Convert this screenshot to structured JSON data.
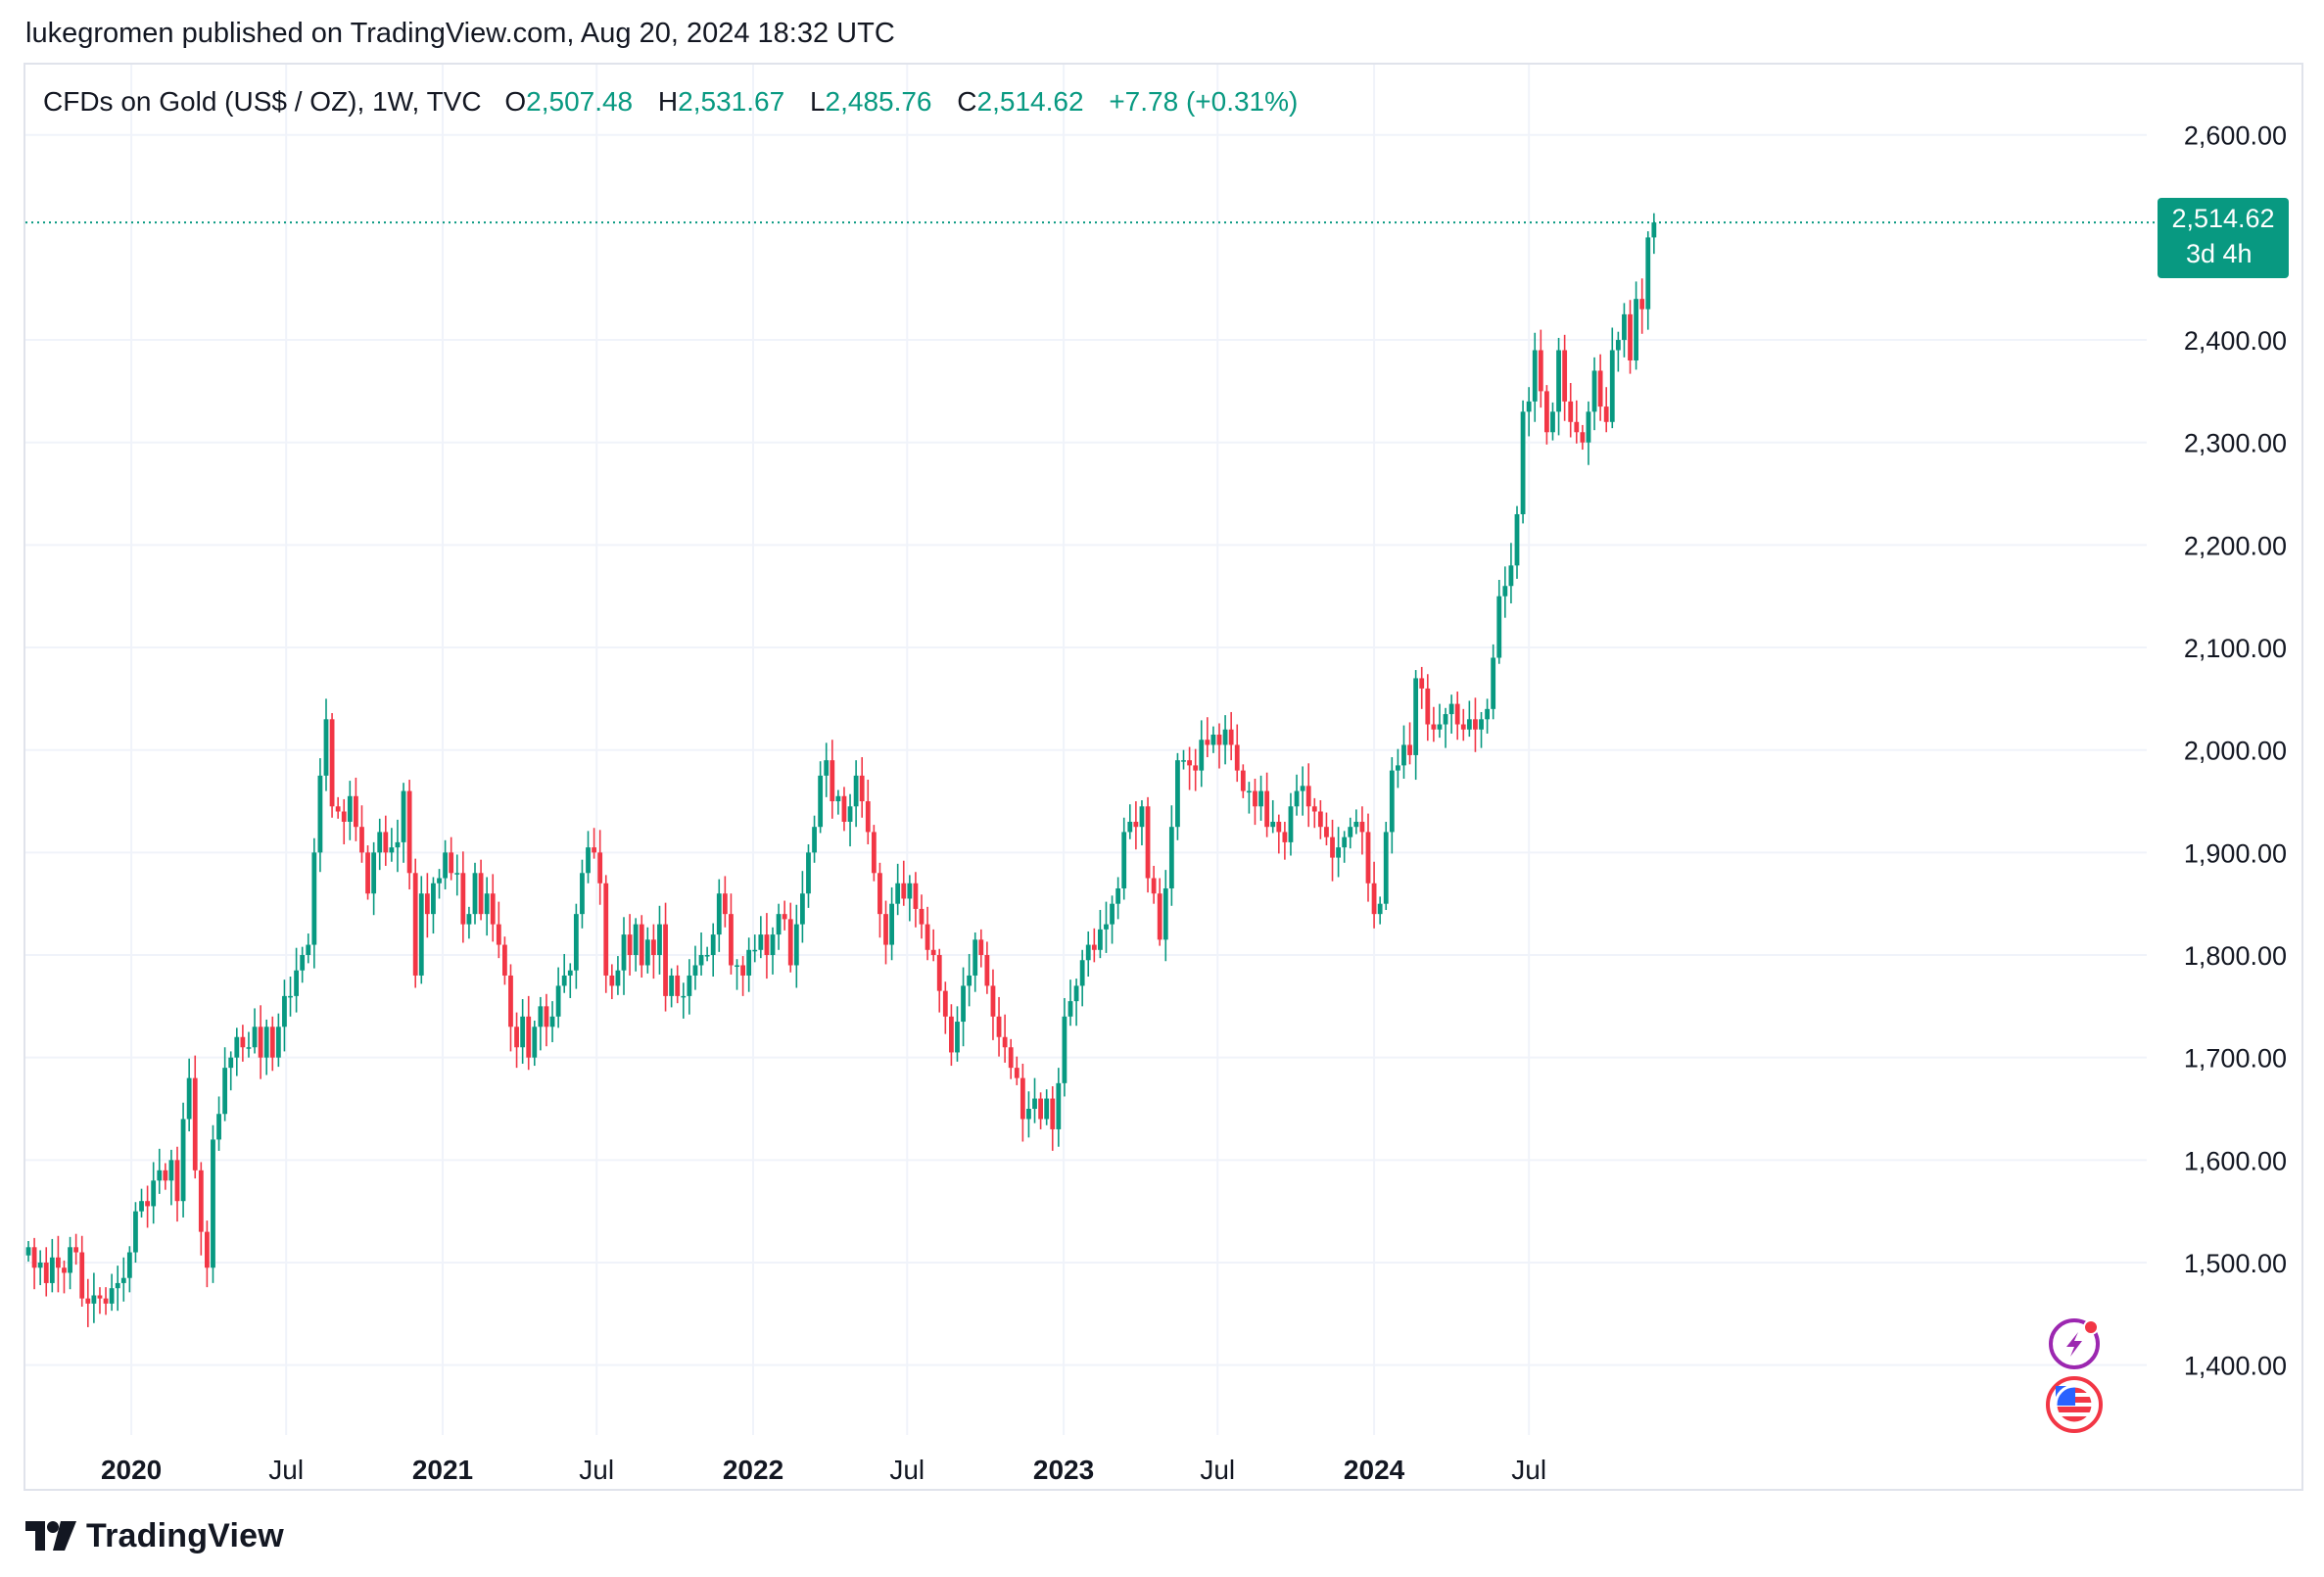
{
  "header": {
    "published": "lukegromen published on TradingView.com, Aug 20, 2024 18:32 UTC"
  },
  "legend": {
    "symbol": "CFDs on Gold (US$ / OZ), 1W, TVC",
    "o_label": "O",
    "o_value": "2,507.48",
    "h_label": "H",
    "h_value": "2,531.67",
    "l_label": "L",
    "l_value": "2,485.76",
    "c_label": "C",
    "c_value": "2,514.62",
    "change": "+7.78 (+0.31%)"
  },
  "price_tag": {
    "price": "2,514.62",
    "countdown": "3d 4h"
  },
  "footer": {
    "brand": "TradingView"
  },
  "colors": {
    "up": "#089981",
    "down": "#f23645",
    "grid": "#f0f3fa",
    "text": "#131722"
  },
  "icons": [
    "lightning-event-icon",
    "us-flag-icon"
  ],
  "chart_data": {
    "type": "candlestick",
    "symbol": "CFDs on Gold (US$ / OZ)",
    "interval": "1W",
    "y_ticks": [
      1400,
      1500,
      1600,
      1700,
      1800,
      1900,
      2000,
      2100,
      2200,
      2300,
      2400,
      2600
    ],
    "y_tick_labels": [
      "1,400.00",
      "1,500.00",
      "1,600.00",
      "1,700.00",
      "1,800.00",
      "1,900.00",
      "2,000.00",
      "2,100.00",
      "2,200.00",
      "2,300.00",
      "2,400.00",
      "2,600.00"
    ],
    "ylim": [
      1340,
      2640
    ],
    "last_price": 2514.62,
    "x_ticks": [
      {
        "label": "2020",
        "date": "2020-01-01",
        "bold": true
      },
      {
        "label": "Jul",
        "date": "2020-07-01",
        "bold": false
      },
      {
        "label": "2021",
        "date": "2021-01-01",
        "bold": true
      },
      {
        "label": "Jul",
        "date": "2021-07-01",
        "bold": false
      },
      {
        "label": "2022",
        "date": "2022-01-01",
        "bold": true
      },
      {
        "label": "Jul",
        "date": "2022-07-01",
        "bold": false
      },
      {
        "label": "2023",
        "date": "2023-01-01",
        "bold": true
      },
      {
        "label": "Jul",
        "date": "2023-07-01",
        "bold": false
      },
      {
        "label": "2024",
        "date": "2024-01-01",
        "bold": true
      },
      {
        "label": "Jul",
        "date": "2024-07-01",
        "bold": false
      }
    ],
    "first_week": "2019-09-02",
    "weekly_close": [
      1515,
      1495,
      1500,
      1480,
      1505,
      1495,
      1490,
      1515,
      1510,
      1465,
      1460,
      1468,
      1465,
      1460,
      1475,
      1480,
      1485,
      1510,
      1550,
      1560,
      1555,
      1580,
      1590,
      1580,
      1600,
      1560,
      1640,
      1680,
      1590,
      1530,
      1495,
      1620,
      1645,
      1690,
      1700,
      1720,
      1710,
      1710,
      1730,
      1700,
      1730,
      1700,
      1730,
      1760,
      1760,
      1785,
      1800,
      1810,
      1900,
      1975,
      2030,
      1945,
      1940,
      1930,
      1955,
      1925,
      1900,
      1860,
      1900,
      1920,
      1900,
      1905,
      1910,
      1960,
      1880,
      1780,
      1860,
      1840,
      1870,
      1875,
      1900,
      1880,
      1880,
      1830,
      1840,
      1880,
      1840,
      1860,
      1830,
      1810,
      1780,
      1730,
      1710,
      1740,
      1700,
      1730,
      1750,
      1730,
      1740,
      1770,
      1780,
      1785,
      1840,
      1880,
      1905,
      1900,
      1870,
      1780,
      1770,
      1785,
      1820,
      1800,
      1830,
      1790,
      1815,
      1800,
      1830,
      1760,
      1780,
      1760,
      1760,
      1780,
      1790,
      1800,
      1800,
      1820,
      1860,
      1840,
      1790,
      1790,
      1780,
      1805,
      1805,
      1820,
      1800,
      1820,
      1840,
      1835,
      1790,
      1830,
      1860,
      1900,
      1925,
      1975,
      1990,
      1950,
      1955,
      1930,
      1945,
      1975,
      1950,
      1920,
      1880,
      1840,
      1810,
      1850,
      1870,
      1855,
      1870,
      1845,
      1830,
      1805,
      1800,
      1765,
      1740,
      1705,
      1735,
      1770,
      1780,
      1815,
      1800,
      1770,
      1740,
      1720,
      1710,
      1690,
      1680,
      1640,
      1650,
      1660,
      1640,
      1660,
      1630,
      1675,
      1740,
      1755,
      1770,
      1795,
      1810,
      1805,
      1825,
      1830,
      1850,
      1865,
      1920,
      1930,
      1925,
      1945,
      1875,
      1860,
      1815,
      1865,
      1925,
      1990,
      1990,
      1985,
      1980,
      2010,
      2005,
      2015,
      2005,
      2020,
      2005,
      1980,
      1960,
      1960,
      1945,
      1960,
      1925,
      1930,
      1920,
      1910,
      1945,
      1960,
      1965,
      1945,
      1940,
      1925,
      1915,
      1895,
      1905,
      1915,
      1925,
      1930,
      1920,
      1870,
      1840,
      1850,
      1920,
      1980,
      1985,
      2005,
      1995,
      2070,
      2060,
      2025,
      2020,
      2025,
      2035,
      2045,
      2025,
      2020,
      2030,
      2020,
      2030,
      2040,
      2090,
      2150,
      2160,
      2180,
      2230,
      2330,
      2340,
      2390,
      2350,
      2310,
      2330,
      2390,
      2340,
      2320,
      2310,
      2300,
      2330,
      2370,
      2335,
      2320,
      2390,
      2400,
      2425,
      2380,
      2440,
      2430,
      2500,
      2514.62
    ]
  }
}
